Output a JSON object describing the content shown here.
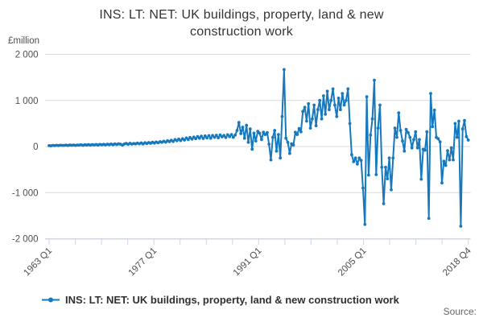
{
  "header": {
    "title": "INS: LT: NET: UK buildings, property, land & new construction work"
  },
  "legend": {
    "label": "INS: LT: NET: UK buildings, property, land & new construction work"
  },
  "footer": {
    "source_label": "Source:"
  },
  "colors": {
    "line": "#1678bd",
    "grid": "#d8d8d8",
    "axis": "#ccd6eb",
    "tick_labels": "#4d4d4d",
    "title": "#333333",
    "source": "#666666"
  },
  "chart_data": {
    "type": "line",
    "title": "INS: LT: NET: UK buildings, property, land & new construction work",
    "xlabel": "",
    "ylabel": "£million",
    "ylim": [
      -2000,
      2000
    ],
    "grid": "horizontal",
    "legend_position": "bottom-left",
    "frequency": "quarterly",
    "x_start": "1963 Q1",
    "x_end": "2018 Q4",
    "y_ticks": [
      {
        "value": 2000,
        "label": "2 000"
      },
      {
        "value": 1000,
        "label": "1 000"
      },
      {
        "value": 0,
        "label": "0"
      },
      {
        "value": -1000,
        "label": "-1 000"
      },
      {
        "value": -2000,
        "label": "-2 000"
      }
    ],
    "x_minor_tick_count": 17,
    "x_tick_labels": [
      "1963 Q1",
      "1977 Q1",
      "1991 Q1",
      "2005 Q1",
      "2018 Q4"
    ],
    "x_tick_label_positions": [
      0,
      4,
      8,
      12,
      16
    ],
    "series": [
      {
        "name": "INS: LT: NET: UK buildings, property, land & new construction work",
        "values": [
          20,
          16,
          24,
          20,
          26,
          21,
          28,
          24,
          25,
          30,
          22,
          31,
          27,
          33,
          25,
          34,
          29,
          36,
          27,
          38,
          31,
          40,
          30,
          42,
          34,
          44,
          32,
          45,
          36,
          48,
          35,
          50,
          40,
          54,
          38,
          56,
          44,
          60,
          50,
          30,
          55,
          66,
          48,
          70,
          52,
          64,
          58,
          74,
          60,
          78,
          55,
          82,
          65,
          88,
          70,
          92,
          75,
          98,
          80,
          105,
          90,
          115,
          95,
          125,
          105,
          135,
          110,
          150,
          125,
          160,
          130,
          170,
          140,
          185,
          150,
          195,
          160,
          205,
          170,
          215,
          180,
          225,
          175,
          230,
          185,
          235,
          180,
          240,
          200,
          245,
          190,
          250,
          210,
          240,
          195,
          255,
          215,
          260,
          200,
          250,
          350,
          520,
          280,
          420,
          180,
          460,
          90,
          380,
          -60,
          290,
          120,
          330,
          290,
          150,
          310,
          260,
          300,
          50,
          -290,
          200,
          350,
          -100,
          260,
          -250,
          650,
          1670,
          180,
          90,
          -150,
          60,
          30,
          310,
          260,
          390,
          320,
          760,
          850,
          550,
          930,
          400,
          600,
          900,
          450,
          800,
          1000,
          600,
          1100,
          700,
          1200,
          800,
          1000,
          1250,
          900,
          650,
          1050,
          800,
          1150,
          900,
          1000,
          1250,
          500,
          -180,
          -330,
          -250,
          -380,
          -250,
          -300,
          -900,
          -1690,
          1080,
          -620,
          250,
          600,
          1440,
          -610,
          400,
          900,
          -450,
          -1240,
          -450,
          -700,
          -250,
          -940,
          -250,
          400,
          200,
          730,
          350,
          120,
          -100,
          370,
          300,
          200,
          -30,
          150,
          320,
          -30,
          150,
          -710,
          -60,
          -80,
          320,
          -1560,
          1150,
          430,
          790,
          200,
          170,
          100,
          -790,
          -320,
          -410,
          -90,
          -290,
          -30,
          -290,
          500,
          200,
          550,
          -1730,
          380,
          565,
          215,
          140
        ]
      }
    ]
  }
}
